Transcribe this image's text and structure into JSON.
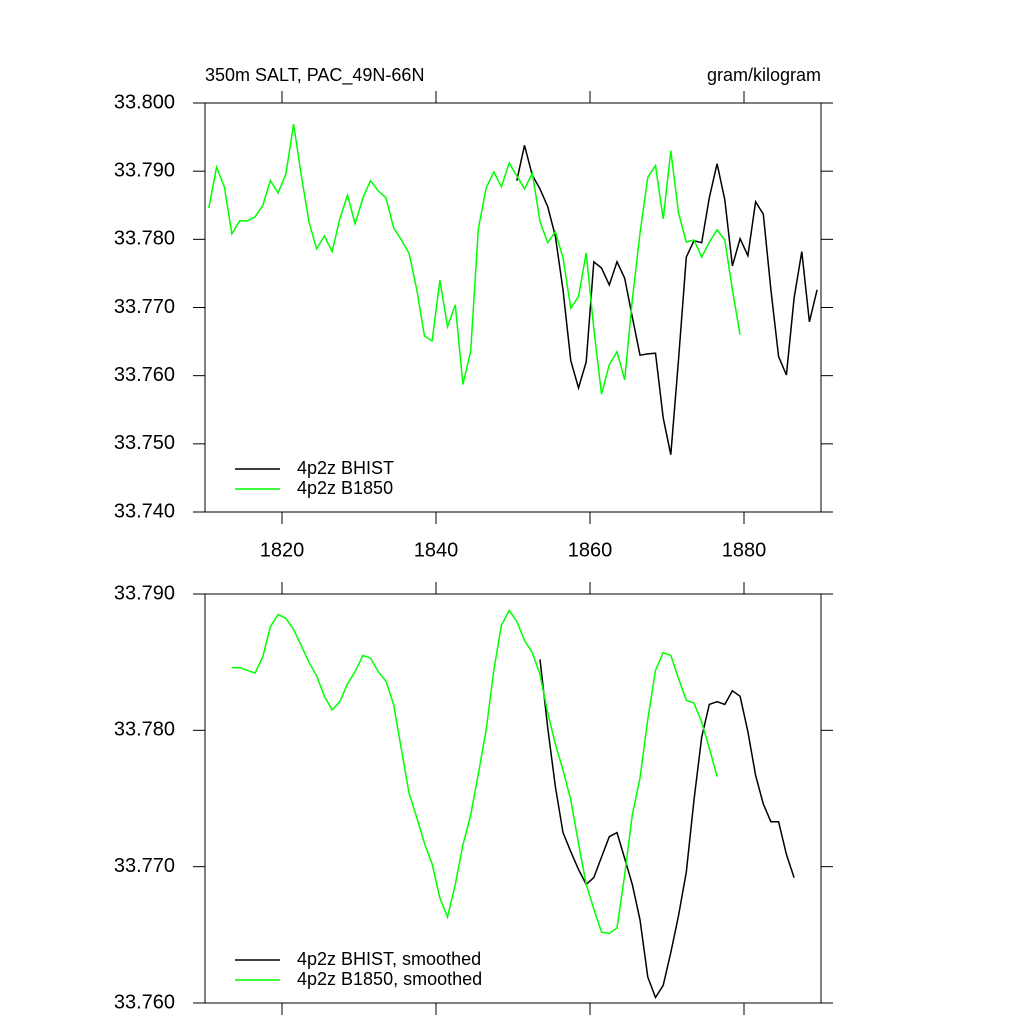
{
  "chart_data": [
    {
      "type": "line",
      "title": "350m SALT, PAC_49N-66N",
      "units": "gram/kilogram",
      "x": [
        1810.5,
        1811.5,
        1812.5,
        1813.5,
        1814.5,
        1815.5,
        1816.5,
        1817.5,
        1818.5,
        1819.5,
        1820.5,
        1821.5,
        1822.5,
        1823.5,
        1824.5,
        1825.5,
        1826.5,
        1827.5,
        1828.5,
        1829.5,
        1830.5,
        1831.5,
        1832.5,
        1833.5,
        1834.5,
        1835.5,
        1836.5,
        1837.5,
        1838.5,
        1839.5,
        1840.5,
        1841.5,
        1842.5,
        1843.5,
        1844.5,
        1845.5,
        1846.5,
        1847.5,
        1848.5,
        1849.5,
        1850.5,
        1851.5,
        1852.5,
        1853.5,
        1854.5,
        1855.5,
        1856.5,
        1857.5,
        1858.5,
        1859.5,
        1860.5,
        1861.5,
        1862.5,
        1863.5,
        1864.5,
        1865.5,
        1866.5,
        1867.5,
        1868.5,
        1869.5,
        1870.5,
        1871.5,
        1872.5,
        1873.5,
        1874.5,
        1875.5,
        1876.5,
        1877.5,
        1878.5,
        1879.5,
        1880.5,
        1881.5,
        1882.5,
        1883.5,
        1884.5,
        1885.5,
        1886.5,
        1887.5,
        1888.5,
        1889.5
      ],
      "series": [
        {
          "name": "4p2z BHIST",
          "color": "#000000",
          "values": [
            null,
            null,
            null,
            null,
            null,
            null,
            null,
            null,
            null,
            null,
            null,
            null,
            null,
            null,
            null,
            null,
            null,
            null,
            null,
            null,
            null,
            null,
            null,
            null,
            null,
            null,
            null,
            null,
            null,
            null,
            null,
            null,
            null,
            null,
            null,
            null,
            null,
            null,
            null,
            null,
            33.7886,
            33.7938,
            33.7894,
            33.7874,
            33.7848,
            33.7805,
            33.7726,
            33.7622,
            33.7582,
            33.762,
            33.7767,
            33.7758,
            33.7733,
            33.7767,
            33.7743,
            33.7686,
            33.763,
            33.7632,
            33.7633,
            33.7538,
            33.7484,
            33.7623,
            33.7774,
            33.7798,
            33.7795,
            33.7861,
            33.7911,
            33.7858,
            33.7761,
            33.7801,
            33.7776,
            33.7855,
            33.7837,
            33.7726,
            33.7628,
            33.7601,
            33.7714,
            33.7782,
            33.7679,
            33.7726
          ]
        },
        {
          "name": "4p2z B1850",
          "color": "#00ff00",
          "values": [
            33.7846,
            33.7906,
            33.7877,
            33.7808,
            33.7827,
            33.7827,
            33.7833,
            33.785,
            33.7886,
            33.7868,
            33.7896,
            33.7969,
            33.7894,
            33.7826,
            33.7786,
            33.7805,
            33.7782,
            33.783,
            33.7865,
            33.7823,
            33.7861,
            33.7886,
            33.7871,
            33.7861,
            33.7817,
            33.7799,
            33.778,
            33.7726,
            33.7658,
            33.7651,
            33.774,
            33.7672,
            33.7704,
            33.7587,
            33.7636,
            33.7815,
            33.7875,
            33.7899,
            33.7877,
            33.7912,
            33.7893,
            33.7874,
            33.7897,
            33.7826,
            33.7795,
            33.7811,
            33.7773,
            33.7699,
            33.7716,
            33.778,
            33.7669,
            33.7573,
            33.7616,
            33.7635,
            33.7594,
            33.7711,
            33.7809,
            33.7891,
            33.7908,
            33.783,
            33.793,
            33.7839,
            33.7796,
            33.7799,
            33.7774,
            33.7796,
            33.7814,
            33.7799,
            33.7726,
            33.766,
            null,
            null,
            null,
            null,
            null,
            null,
            null,
            null,
            null,
            null
          ]
        }
      ],
      "xlim": [
        1810,
        1890
      ],
      "xticks": [
        1820,
        1840,
        1860,
        1880
      ],
      "xticklabels": true,
      "ylim": [
        33.74,
        33.8
      ],
      "yticks": [
        {
          "value": 33.74,
          "label": "33.740"
        },
        {
          "value": 33.75,
          "label": "33.750"
        },
        {
          "value": 33.76,
          "label": "33.760"
        },
        {
          "value": 33.77,
          "label": "33.770"
        },
        {
          "value": 33.78,
          "label": "33.780"
        },
        {
          "value": 33.79,
          "label": "33.790"
        },
        {
          "value": 33.8,
          "label": "33.800"
        }
      ],
      "legend": "lower left"
    },
    {
      "type": "line",
      "x": [
        1810.5,
        1811.5,
        1812.5,
        1813.5,
        1814.5,
        1815.5,
        1816.5,
        1817.5,
        1818.5,
        1819.5,
        1820.5,
        1821.5,
        1822.5,
        1823.5,
        1824.5,
        1825.5,
        1826.5,
        1827.5,
        1828.5,
        1829.5,
        1830.5,
        1831.5,
        1832.5,
        1833.5,
        1834.5,
        1835.5,
        1836.5,
        1837.5,
        1838.5,
        1839.5,
        1840.5,
        1841.5,
        1842.5,
        1843.5,
        1844.5,
        1845.5,
        1846.5,
        1847.5,
        1848.5,
        1849.5,
        1850.5,
        1851.5,
        1852.5,
        1853.5,
        1854.5,
        1855.5,
        1856.5,
        1857.5,
        1858.5,
        1859.5,
        1860.5,
        1861.5,
        1862.5,
        1863.5,
        1864.5,
        1865.5,
        1866.5,
        1867.5,
        1868.5,
        1869.5,
        1870.5,
        1871.5,
        1872.5,
        1873.5,
        1874.5,
        1875.5,
        1876.5,
        1877.5,
        1878.5,
        1879.5,
        1880.5,
        1881.5,
        1882.5,
        1883.5,
        1884.5,
        1885.5,
        1886.5,
        1887.5,
        1888.5,
        1889.5
      ],
      "series": [
        {
          "name": "4p2z BHIST, smoothed",
          "color": "#000000",
          "values": [
            null,
            null,
            null,
            null,
            null,
            null,
            null,
            null,
            null,
            null,
            null,
            null,
            null,
            null,
            null,
            null,
            null,
            null,
            null,
            null,
            null,
            null,
            null,
            null,
            null,
            null,
            null,
            null,
            null,
            null,
            null,
            null,
            null,
            null,
            null,
            null,
            null,
            null,
            null,
            null,
            null,
            null,
            null,
            33.7852,
            33.7802,
            33.7759,
            33.7725,
            33.7711,
            33.7698,
            33.7687,
            33.7692,
            33.7707,
            33.7722,
            33.7725,
            33.7706,
            33.7687,
            33.7661,
            33.7619,
            33.7604,
            33.7613,
            33.7637,
            33.7664,
            33.7696,
            33.7749,
            33.7795,
            33.7819,
            33.7821,
            33.7819,
            33.7829,
            33.7825,
            33.7799,
            33.7767,
            33.7746,
            33.7733,
            33.7733,
            33.7709,
            33.7692,
            null,
            null,
            null
          ]
        },
        {
          "name": "4p2z B1850, smoothed",
          "color": "#00ff00",
          "values": [
            null,
            null,
            null,
            33.7846,
            33.7846,
            33.7844,
            33.7842,
            33.7854,
            33.7876,
            33.7885,
            33.7882,
            33.7874,
            33.7862,
            33.785,
            33.784,
            33.7825,
            33.7815,
            33.7821,
            33.7834,
            33.7843,
            33.7855,
            33.7853,
            33.7843,
            33.7836,
            33.7819,
            33.7786,
            33.7754,
            33.7736,
            33.7717,
            33.7702,
            33.7677,
            33.7663,
            33.7687,
            33.7716,
            33.7738,
            33.7768,
            33.78,
            33.7844,
            33.7877,
            33.7888,
            33.788,
            33.7866,
            33.7857,
            33.7841,
            33.7813,
            33.779,
            33.7771,
            33.7749,
            33.7717,
            33.7687,
            33.7669,
            33.7652,
            33.7651,
            33.7655,
            33.7694,
            33.7738,
            33.7765,
            33.7808,
            33.7844,
            33.7857,
            33.7855,
            33.7838,
            33.7822,
            33.782,
            33.7806,
            33.7787,
            33.7766,
            null,
            null,
            null,
            null,
            null,
            null,
            null,
            null,
            null,
            null,
            null,
            null,
            null
          ]
        }
      ],
      "xlim": [
        1810,
        1890
      ],
      "xticks": [
        1820,
        1840,
        1860,
        1880
      ],
      "xticklabels": false,
      "ylim": [
        33.76,
        33.79
      ],
      "yticks": [
        {
          "value": 33.76,
          "label": "33.760"
        },
        {
          "value": 33.77,
          "label": "33.770"
        },
        {
          "value": 33.78,
          "label": "33.780"
        },
        {
          "value": 33.79,
          "label": "33.790"
        }
      ],
      "legend": "lower left"
    }
  ]
}
